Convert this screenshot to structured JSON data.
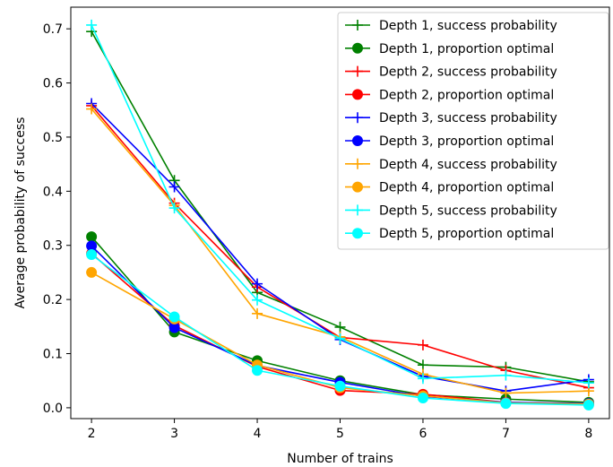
{
  "chart_data": {
    "type": "line",
    "title": "",
    "xlabel": "Number of trains",
    "ylabel": "Average probability of success",
    "x": [
      2,
      3,
      4,
      5,
      6,
      7,
      8
    ],
    "xlim": [
      1.75,
      8.25
    ],
    "ylim": [
      -0.02,
      0.74
    ],
    "xticks": [
      2,
      3,
      4,
      5,
      6,
      7,
      8
    ],
    "yticks": [
      0.0,
      0.1,
      0.2,
      0.3,
      0.4,
      0.5,
      0.6,
      0.7
    ],
    "ytick_labels": [
      "0.0",
      "0.1",
      "0.2",
      "0.3",
      "0.4",
      "0.5",
      "0.6",
      "0.7"
    ],
    "grid": false,
    "legend_position": "top-right",
    "series": [
      {
        "name": "Depth 1, success probability",
        "color": "#008000",
        "marker": "plus",
        "values": [
          0.695,
          0.42,
          0.213,
          0.149,
          0.079,
          0.075,
          0.048
        ]
      },
      {
        "name": "Depth 1, proportion optimal",
        "color": "#008000",
        "marker": "circle",
        "values": [
          0.316,
          0.14,
          0.087,
          0.05,
          0.024,
          0.016,
          0.01
        ]
      },
      {
        "name": "Depth 2, success probability",
        "color": "#ff0000",
        "marker": "plus",
        "values": [
          0.558,
          0.378,
          0.223,
          0.13,
          0.116,
          0.069,
          0.037
        ]
      },
      {
        "name": "Depth 2, proportion optimal",
        "color": "#ff0000",
        "marker": "circle",
        "values": [
          0.285,
          0.152,
          0.076,
          0.032,
          0.025,
          0.01,
          0.007
        ]
      },
      {
        "name": "Depth 3, success probability",
        "color": "#0000ff",
        "marker": "plus",
        "values": [
          0.562,
          0.408,
          0.229,
          0.126,
          0.058,
          0.031,
          0.052
        ]
      },
      {
        "name": "Depth 3, proportion optimal",
        "color": "#0000ff",
        "marker": "circle",
        "values": [
          0.299,
          0.148,
          0.078,
          0.047,
          0.021,
          0.01,
          0.008
        ]
      },
      {
        "name": "Depth 4, success probability",
        "color": "#ffa500",
        "marker": "plus",
        "values": [
          0.552,
          0.374,
          0.174,
          0.131,
          0.062,
          0.027,
          0.031
        ]
      },
      {
        "name": "Depth 4, proportion optimal",
        "color": "#ffa500",
        "marker": "circle",
        "values": [
          0.25,
          0.164,
          0.079,
          0.037,
          0.022,
          0.009,
          0.007
        ]
      },
      {
        "name": "Depth 5, success probability",
        "color": "#00ffff",
        "marker": "plus",
        "values": [
          0.707,
          0.369,
          0.199,
          0.128,
          0.054,
          0.06,
          0.046
        ]
      },
      {
        "name": "Depth 5, proportion optimal",
        "color": "#00ffff",
        "marker": "circle",
        "values": [
          0.283,
          0.168,
          0.069,
          0.04,
          0.018,
          0.008,
          0.005
        ]
      }
    ]
  }
}
